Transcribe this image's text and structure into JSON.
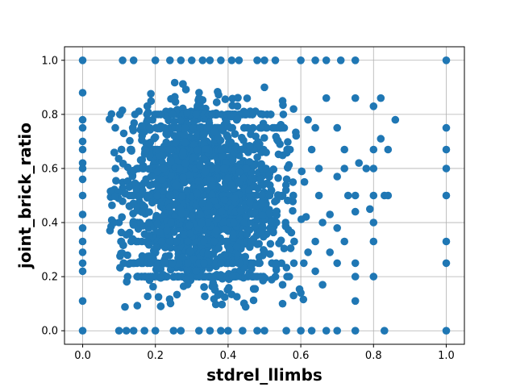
{
  "chart_data": {
    "type": "scatter",
    "title": "",
    "xlabel": "stdrel_llimbs",
    "ylabel": "joint_brick_ratio",
    "xlim": [
      -0.05,
      1.05
    ],
    "ylim": [
      -0.05,
      1.05
    ],
    "xticks": [
      0.0,
      0.2,
      0.4,
      0.6,
      0.8,
      1.0
    ],
    "yticks": [
      0.0,
      0.2,
      0.4,
      0.6,
      0.8,
      1.0
    ],
    "xtick_labels": [
      "0.0",
      "0.2",
      "0.4",
      "0.6",
      "0.8",
      "1.0"
    ],
    "ytick_labels": [
      "0.0",
      "0.2",
      "0.4",
      "0.6",
      "0.8",
      "1.0"
    ],
    "grid": true,
    "marker_color": "#1f77b4",
    "series": [
      {
        "points": [
          [
            0.0,
            0.0
          ],
          [
            0.0,
            0.11
          ],
          [
            0.0,
            0.22
          ],
          [
            0.0,
            0.25
          ],
          [
            0.0,
            0.29
          ],
          [
            0.0,
            0.33
          ],
          [
            0.0,
            0.38
          ],
          [
            0.0,
            0.43
          ],
          [
            0.0,
            0.5
          ],
          [
            0.0,
            0.56
          ],
          [
            0.0,
            0.6
          ],
          [
            0.0,
            0.62
          ],
          [
            0.0,
            0.67
          ],
          [
            0.0,
            0.7
          ],
          [
            0.0,
            0.75
          ],
          [
            0.0,
            0.78
          ],
          [
            0.0,
            0.88
          ],
          [
            0.0,
            1.0
          ],
          [
            1.0,
            0.0
          ],
          [
            1.0,
            0.25
          ],
          [
            1.0,
            0.33
          ],
          [
            1.0,
            0.5
          ],
          [
            1.0,
            0.6
          ],
          [
            1.0,
            0.67
          ],
          [
            1.0,
            0.75
          ],
          [
            1.0,
            1.0
          ],
          [
            0.11,
            1.0
          ],
          [
            0.14,
            1.0
          ],
          [
            0.2,
            1.0
          ],
          [
            0.24,
            1.0
          ],
          [
            0.27,
            1.0
          ],
          [
            0.3,
            1.0
          ],
          [
            0.33,
            1.0
          ],
          [
            0.35,
            1.0
          ],
          [
            0.38,
            1.0
          ],
          [
            0.41,
            1.0
          ],
          [
            0.43,
            1.0
          ],
          [
            0.48,
            1.0
          ],
          [
            0.5,
            1.0
          ],
          [
            0.53,
            1.0
          ],
          [
            0.6,
            1.0
          ],
          [
            0.64,
            1.0
          ],
          [
            0.67,
            1.0
          ],
          [
            0.71,
            1.0
          ],
          [
            0.75,
            1.0
          ],
          [
            0.1,
            0.0
          ],
          [
            0.12,
            0.0
          ],
          [
            0.14,
            0.0
          ],
          [
            0.17,
            0.0
          ],
          [
            0.2,
            0.0
          ],
          [
            0.25,
            0.0
          ],
          [
            0.27,
            0.0
          ],
          [
            0.32,
            0.0
          ],
          [
            0.35,
            0.0
          ],
          [
            0.38,
            0.0
          ],
          [
            0.4,
            0.0
          ],
          [
            0.44,
            0.0
          ],
          [
            0.48,
            0.0
          ],
          [
            0.5,
            0.0
          ],
          [
            0.56,
            0.0
          ],
          [
            0.6,
            0.0
          ],
          [
            0.63,
            0.0
          ],
          [
            0.67,
            0.0
          ],
          [
            0.7,
            0.0
          ],
          [
            0.75,
            0.0
          ],
          [
            0.83,
            0.0
          ],
          [
            0.5,
            0.9
          ],
          [
            0.55,
            0.85
          ],
          [
            0.58,
            0.82
          ],
          [
            0.62,
            0.78
          ],
          [
            0.64,
            0.75
          ],
          [
            0.67,
            0.86
          ],
          [
            0.7,
            0.75
          ],
          [
            0.72,
            0.67
          ],
          [
            0.75,
            0.86
          ],
          [
            0.8,
            0.83
          ],
          [
            0.82,
            0.86
          ],
          [
            0.86,
            0.78
          ],
          [
            0.8,
            0.67
          ],
          [
            0.82,
            0.71
          ],
          [
            0.84,
            0.67
          ],
          [
            0.78,
            0.6
          ],
          [
            0.8,
            0.6
          ],
          [
            0.75,
            0.5
          ],
          [
            0.8,
            0.5
          ],
          [
            0.83,
            0.5
          ],
          [
            0.84,
            0.5
          ],
          [
            0.72,
            0.6
          ],
          [
            0.76,
            0.62
          ],
          [
            0.7,
            0.57
          ],
          [
            0.73,
            0.5
          ],
          [
            0.79,
            0.45
          ],
          [
            0.8,
            0.4
          ],
          [
            0.75,
            0.44
          ],
          [
            0.8,
            0.33
          ],
          [
            0.68,
            0.43
          ],
          [
            0.7,
            0.38
          ],
          [
            0.72,
            0.33
          ],
          [
            0.68,
            0.29
          ],
          [
            0.7,
            0.25
          ],
          [
            0.75,
            0.25
          ],
          [
            0.75,
            0.2
          ],
          [
            0.8,
            0.2
          ],
          [
            0.75,
            0.11
          ],
          [
            0.66,
            0.17
          ],
          [
            0.65,
            0.5
          ],
          [
            0.66,
            0.4
          ],
          [
            0.64,
            0.33
          ],
          [
            0.64,
            0.22
          ],
          [
            0.63,
            0.67
          ],
          [
            0.61,
            0.55
          ],
          [
            0.65,
            0.6
          ],
          [
            0.62,
            0.29
          ],
          [
            0.6,
            0.14
          ],
          [
            0.55,
            0.17
          ],
          [
            0.58,
            0.13
          ],
          [
            0.55,
            0.1
          ]
        ],
        "cloud": {
          "x_center": 0.33,
          "x_spread": 0.11,
          "x_range": [
            0.07,
            0.62
          ],
          "y_range": [
            0.07,
            0.93
          ],
          "approx_count": 2600
        },
        "y_bands": [
          0.5,
          0.6,
          0.4,
          0.33,
          0.67,
          0.25,
          0.75,
          0.2,
          0.8
        ]
      }
    ]
  }
}
